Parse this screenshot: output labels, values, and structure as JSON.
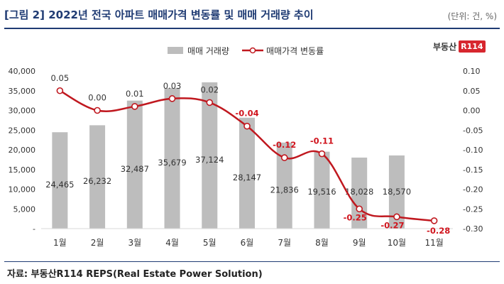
{
  "header": {
    "title": "[그림 2] 2022년 전국 아파트 매매가격 변동률 및 매매 거래량 추이",
    "unit": "(단위: 건, %)"
  },
  "logo": {
    "text": "부동산",
    "badge": "R114"
  },
  "footer": {
    "source": "자료: 부동산R114 REPS(Real Estate Power Solution)"
  },
  "colors": {
    "bar": "#bdbdbd",
    "line": "#c0181f",
    "title": "#1f3b73",
    "negative_label": "#d0151e"
  },
  "chart_data": {
    "type": "bar+line",
    "categories": [
      "1월",
      "2월",
      "3월",
      "4월",
      "5월",
      "6월",
      "7월",
      "8월",
      "9월",
      "10월",
      "11월"
    ],
    "series": [
      {
        "name": "매매 거래량",
        "type": "bar",
        "axis": "left",
        "values": [
          24465,
          26232,
          32487,
          35679,
          37124,
          28147,
          21836,
          19516,
          18028,
          18570,
          null
        ],
        "labels": [
          "24,465",
          "26,232",
          "32,487",
          "35,679",
          "37,124",
          "28,147",
          "21,836",
          "19,516",
          "18,028",
          "18,570",
          ""
        ]
      },
      {
        "name": "매매가격 변동률",
        "type": "line",
        "axis": "right",
        "values": [
          0.05,
          0.0,
          0.01,
          0.03,
          0.02,
          -0.04,
          -0.12,
          -0.11,
          -0.25,
          -0.27,
          -0.28
        ],
        "labels": [
          "0.05",
          "0.00",
          "0.01",
          "0.03",
          "0.02",
          "-0.04",
          "-0.12",
          "-0.11",
          "-0.25",
          "-0.27",
          "-0.28"
        ]
      }
    ],
    "left_axis": {
      "min": 0,
      "max": 40000,
      "step": 5000,
      "ticks": [
        "-",
        "5,000",
        "10,000",
        "15,000",
        "20,000",
        "25,000",
        "30,000",
        "35,000",
        "40,000"
      ]
    },
    "right_axis": {
      "min": -0.3,
      "max": 0.1,
      "step": 0.05,
      "ticks": [
        "-0.30",
        "-0.25",
        "-0.20",
        "-0.15",
        "-0.10",
        "-0.05",
        "0.00",
        "0.05",
        "0.10"
      ]
    },
    "legend": [
      "매매 거래량",
      "매매가격 변동률"
    ]
  }
}
